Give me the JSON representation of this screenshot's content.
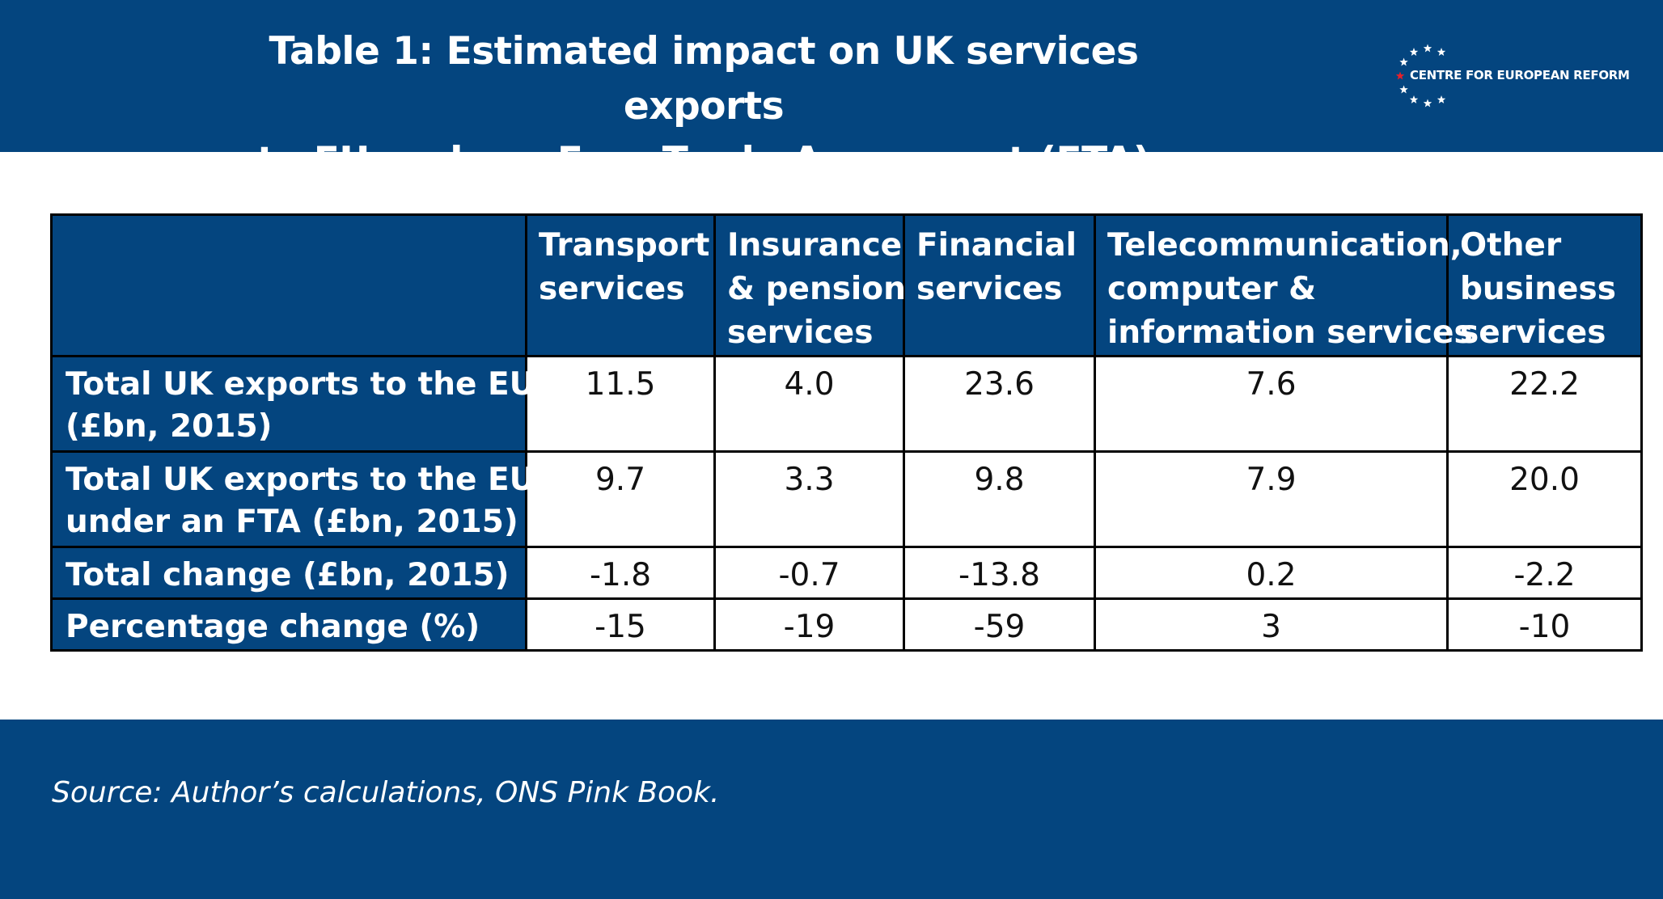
{
  "header": {
    "title_line1": "Table 1: Estimated impact on UK services exports",
    "title_line2": "to EU under a Free Trade Agreement (FTA)",
    "logo_text": "CENTRE FOR EUROPEAN REFORM",
    "background_color": "#04457f",
    "logo_star_color": "#ffffff",
    "logo_accent_star_color": "#e8202a"
  },
  "chart_data": {
    "type": "table",
    "columns": [
      {
        "line1": "Transport",
        "line2": "services",
        "line3": ""
      },
      {
        "line1": "Insurance",
        "line2": "& pension",
        "line3": "services"
      },
      {
        "line1": "Financial",
        "line2": "services",
        "line3": ""
      },
      {
        "line1": "Telecommunication,",
        "line2": "computer &",
        "line3": "information services"
      },
      {
        "line1": "Other",
        "line2": "business",
        "line3": "services"
      }
    ],
    "rows": [
      {
        "label_line1": "Total UK exports to the EU",
        "label_line2": "(£bn, 2015)",
        "values": [
          "11.5",
          "4.0",
          "23.6",
          "7.6",
          "22.2"
        ]
      },
      {
        "label_line1": "Total UK exports to the EU",
        "label_line2": "under an FTA (£bn, 2015)",
        "values": [
          "9.7",
          "3.3",
          "9.8",
          "7.9",
          "20.0"
        ]
      },
      {
        "label_line1": "Total change (£bn, 2015)",
        "label_line2": "",
        "values": [
          "-1.8",
          "-0.7",
          "-13.8",
          "0.2",
          "-2.2"
        ]
      },
      {
        "label_line1": "Percentage change (%)",
        "label_line2": "",
        "values": [
          "-15",
          "-19",
          "-59",
          "3",
          "-10"
        ]
      }
    ]
  },
  "footer": {
    "source": "Source: Author’s calculations, ONS Pink Book."
  }
}
